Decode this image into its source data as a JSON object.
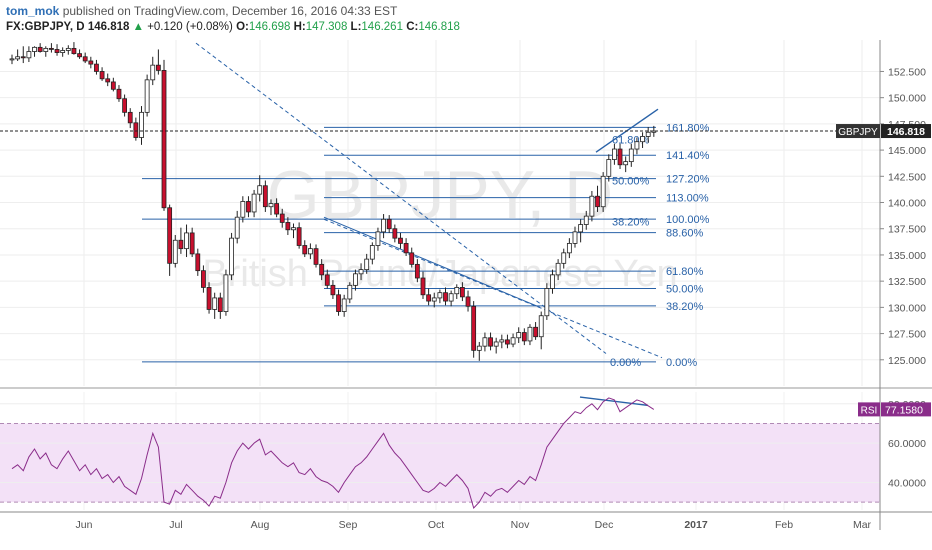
{
  "header": {
    "author": "tom_mok",
    "published_text": "published on TradingView.com, December 16, 2016 04:33 EST",
    "symbol": "FX:GBPJPY, D",
    "last": "146.818",
    "change_arrow": "▲",
    "change": "+0.120 (+0.08%)",
    "open_label": "O:",
    "open": "146.698",
    "high_label": "H:",
    "high": "147.308",
    "low_label": "L:",
    "low": "146.261",
    "close_label": "C:",
    "close": "146.818"
  },
  "watermark": {
    "symbol": "GBPJPY, D",
    "name": "British Pound/Japanese Yen"
  },
  "price_badge": {
    "label": "GBPJPY",
    "value": "146.818",
    "price": 146.818
  },
  "rsi_badge": {
    "label": "RSI",
    "value": "77.1580",
    "level": 77.158
  },
  "colors": {
    "up": "#ffffff",
    "down": "#c8102e",
    "wick": "#222222",
    "fib": "#2962a8",
    "rsi": "#8a2d8a",
    "rsi_band": "#f3e1f7"
  },
  "chart_data": {
    "type": "candlestick",
    "price_axis": {
      "ylim": [
        122.5,
        155.5
      ],
      "ticks": [
        "152.500",
        "150.000",
        "147.500",
        "145.000",
        "142.500",
        "140.000",
        "137.500",
        "135.000",
        "132.500",
        "130.000",
        "127.500",
        "125.000"
      ]
    },
    "rsi_axis": {
      "ylim": [
        26,
        86
      ],
      "ticks": [
        "80.0000",
        "60.0000",
        "40.0000"
      ],
      "overbought": 70,
      "oversold": 30
    },
    "time_axis": {
      "labels": [
        "Jun",
        "Jul",
        "Aug",
        "Sep",
        "Oct",
        "Nov",
        "Dec",
        "2017",
        "Feb",
        "Mar"
      ]
    },
    "candles": [
      [
        0,
        153.6,
        154.1,
        153.2,
        153.7
      ],
      [
        1,
        153.7,
        154.6,
        153.5,
        153.9
      ],
      [
        2,
        153.9,
        154.9,
        153.3,
        153.8
      ],
      [
        3,
        153.8,
        154.9,
        153.4,
        154.4
      ],
      [
        4,
        154.4,
        154.9,
        153.9,
        154.8
      ],
      [
        5,
        154.8,
        155.2,
        154.3,
        154.4
      ],
      [
        6,
        154.4,
        154.9,
        153.9,
        154.7
      ],
      [
        7,
        154.7,
        155.2,
        154.3,
        154.6
      ],
      [
        8,
        154.6,
        155.1,
        154.0,
        154.3
      ],
      [
        9,
        154.3,
        154.8,
        153.9,
        154.5
      ],
      [
        10,
        154.5,
        155.0,
        154.1,
        154.7
      ],
      [
        11,
        154.7,
        155.3,
        154.1,
        154.2
      ],
      [
        12,
        154.2,
        154.6,
        153.7,
        153.9
      ],
      [
        13,
        153.9,
        154.3,
        153.3,
        153.5
      ],
      [
        14,
        153.5,
        153.9,
        152.8,
        153.2
      ],
      [
        15,
        153.2,
        153.6,
        152.2,
        152.5
      ],
      [
        16,
        152.5,
        152.9,
        151.6,
        151.8
      ],
      [
        17,
        151.8,
        152.3,
        151.1,
        151.5
      ],
      [
        18,
        151.5,
        151.9,
        150.6,
        150.8
      ],
      [
        19,
        150.8,
        151.2,
        149.6,
        149.9
      ],
      [
        20,
        149.9,
        150.3,
        148.2,
        148.6
      ],
      [
        21,
        148.6,
        149.0,
        147.1,
        147.6
      ],
      [
        22,
        147.6,
        148.1,
        145.9,
        146.2
      ],
      [
        23,
        146.2,
        149.2,
        145.5,
        148.6
      ],
      [
        24,
        148.6,
        152.2,
        148.2,
        151.7
      ],
      [
        25,
        151.7,
        153.9,
        151.2,
        153.1
      ],
      [
        26,
        153.1,
        154.6,
        152.2,
        152.6
      ],
      [
        27,
        152.6,
        153.6,
        139.2,
        139.5
      ],
      [
        28,
        139.5,
        139.8,
        133.0,
        134.2
      ],
      [
        29,
        134.2,
        136.9,
        133.8,
        136.4
      ],
      [
        30,
        136.4,
        137.6,
        135.1,
        135.6
      ],
      [
        31,
        135.6,
        137.9,
        134.8,
        137.1
      ],
      [
        32,
        137.1,
        137.6,
        134.8,
        135.1
      ],
      [
        33,
        135.1,
        135.6,
        133.0,
        133.5
      ],
      [
        34,
        133.5,
        134.0,
        131.4,
        131.9
      ],
      [
        35,
        131.9,
        132.4,
        129.4,
        129.8
      ],
      [
        36,
        129.8,
        131.4,
        128.9,
        130.9
      ],
      [
        37,
        130.9,
        131.4,
        128.9,
        129.6
      ],
      [
        38,
        129.6,
        133.6,
        129.2,
        133.1
      ],
      [
        39,
        133.1,
        137.1,
        132.6,
        136.6
      ],
      [
        40,
        136.6,
        139.2,
        136.1,
        138.6
      ],
      [
        41,
        138.6,
        140.6,
        138.1,
        140.1
      ],
      [
        42,
        140.1,
        140.6,
        138.6,
        139.1
      ],
      [
        43,
        139.1,
        141.2,
        138.6,
        140.8
      ],
      [
        44,
        140.8,
        142.6,
        140.1,
        141.6
      ],
      [
        45,
        141.6,
        142.1,
        139.1,
        139.6
      ],
      [
        46,
        139.6,
        140.3,
        138.8,
        139.9
      ],
      [
        47,
        139.9,
        140.4,
        138.6,
        138.9
      ],
      [
        48,
        138.9,
        139.4,
        137.6,
        138.1
      ],
      [
        49,
        138.1,
        138.6,
        136.9,
        137.4
      ],
      [
        50,
        137.4,
        138.0,
        136.6,
        137.6
      ],
      [
        51,
        137.6,
        138.1,
        135.6,
        135.9
      ],
      [
        52,
        135.9,
        136.4,
        134.8,
        135.1
      ],
      [
        53,
        135.1,
        136.1,
        134.6,
        135.6
      ],
      [
        54,
        135.6,
        136.0,
        133.8,
        134.1
      ],
      [
        55,
        134.1,
        134.6,
        132.6,
        133.1
      ],
      [
        56,
        133.1,
        133.6,
        131.8,
        132.1
      ],
      [
        57,
        132.1,
        132.6,
        130.8,
        131.2
      ],
      [
        58,
        131.2,
        131.7,
        129.2,
        129.6
      ],
      [
        59,
        129.6,
        131.2,
        129.1,
        130.8
      ],
      [
        60,
        130.8,
        132.4,
        130.4,
        132.1
      ],
      [
        61,
        132.1,
        133.6,
        131.6,
        133.2
      ],
      [
        62,
        133.2,
        134.2,
        132.6,
        133.6
      ],
      [
        63,
        133.6,
        135.1,
        133.2,
        134.6
      ],
      [
        64,
        134.6,
        136.2,
        134.1,
        135.9
      ],
      [
        65,
        135.9,
        137.6,
        135.4,
        137.2
      ],
      [
        66,
        137.2,
        138.9,
        136.6,
        138.4
      ],
      [
        67,
        138.4,
        138.8,
        137.1,
        137.5
      ],
      [
        68,
        137.5,
        137.9,
        136.2,
        136.6
      ],
      [
        69,
        136.6,
        137.1,
        135.6,
        136.1
      ],
      [
        70,
        136.1,
        136.6,
        134.9,
        135.2
      ],
      [
        71,
        135.2,
        135.7,
        133.8,
        134.1
      ],
      [
        72,
        134.1,
        134.6,
        132.4,
        132.8
      ],
      [
        73,
        132.8,
        133.4,
        130.8,
        131.2
      ],
      [
        74,
        131.2,
        131.8,
        130.2,
        130.6
      ],
      [
        75,
        130.6,
        131.4,
        130.0,
        130.9
      ],
      [
        76,
        130.9,
        131.7,
        130.4,
        131.4
      ],
      [
        77,
        131.4,
        131.9,
        130.2,
        130.6
      ],
      [
        78,
        130.6,
        131.6,
        130.1,
        131.3
      ],
      [
        79,
        131.3,
        132.2,
        130.8,
        131.9
      ],
      [
        80,
        131.9,
        132.4,
        130.6,
        131.0
      ],
      [
        81,
        131.0,
        131.6,
        129.6,
        130.1
      ],
      [
        82,
        130.1,
        130.6,
        125.2,
        125.9
      ],
      [
        83,
        125.9,
        126.7,
        124.9,
        126.3
      ],
      [
        84,
        126.3,
        127.6,
        125.8,
        127.1
      ],
      [
        85,
        127.1,
        127.6,
        125.9,
        126.3
      ],
      [
        86,
        126.3,
        127.1,
        125.6,
        126.7
      ],
      [
        87,
        126.7,
        127.4,
        126.1,
        126.9
      ],
      [
        88,
        126.9,
        127.4,
        126.1,
        126.5
      ],
      [
        89,
        126.5,
        127.5,
        126.2,
        127.1
      ],
      [
        90,
        127.1,
        128.1,
        126.6,
        127.6
      ],
      [
        91,
        127.6,
        128.0,
        126.4,
        126.8
      ],
      [
        92,
        126.8,
        128.4,
        126.4,
        128.1
      ],
      [
        93,
        128.1,
        128.6,
        126.9,
        127.2
      ],
      [
        94,
        127.2,
        129.6,
        126.0,
        129.2
      ],
      [
        95,
        129.2,
        132.3,
        128.8,
        131.8
      ],
      [
        96,
        131.8,
        133.6,
        131.3,
        133.1
      ],
      [
        97,
        133.1,
        134.6,
        132.6,
        134.2
      ],
      [
        98,
        134.2,
        135.6,
        133.7,
        135.2
      ],
      [
        99,
        135.2,
        136.6,
        134.7,
        136.1
      ],
      [
        100,
        136.1,
        137.7,
        135.7,
        137.2
      ],
      [
        101,
        137.2,
        138.4,
        136.2,
        137.9
      ],
      [
        102,
        137.9,
        139.2,
        137.4,
        138.7
      ],
      [
        103,
        138.7,
        141.1,
        138.2,
        140.6
      ],
      [
        104,
        140.6,
        141.6,
        139.1,
        139.6
      ],
      [
        105,
        139.6,
        142.9,
        139.1,
        142.5
      ],
      [
        106,
        142.5,
        144.6,
        142.0,
        144.1
      ],
      [
        107,
        144.1,
        145.6,
        143.6,
        145.1
      ],
      [
        108,
        145.1,
        145.6,
        143.2,
        143.6
      ],
      [
        109,
        143.6,
        144.4,
        142.9,
        143.9
      ],
      [
        110,
        143.9,
        145.6,
        143.4,
        145.1
      ],
      [
        111,
        145.1,
        146.2,
        144.6,
        145.8
      ],
      [
        112,
        145.8,
        146.7,
        145.2,
        146.3
      ],
      [
        113,
        146.3,
        147.2,
        145.7,
        146.7
      ],
      [
        114,
        146.698,
        147.308,
        146.261,
        146.818
      ]
    ],
    "rsi": [
      [
        0,
        47
      ],
      [
        1,
        49
      ],
      [
        2,
        46
      ],
      [
        3,
        53
      ],
      [
        4,
        57
      ],
      [
        5,
        52
      ],
      [
        6,
        55
      ],
      [
        7,
        49
      ],
      [
        8,
        47
      ],
      [
        9,
        52
      ],
      [
        10,
        56
      ],
      [
        11,
        51
      ],
      [
        12,
        46
      ],
      [
        13,
        49
      ],
      [
        14,
        44
      ],
      [
        15,
        47
      ],
      [
        16,
        42
      ],
      [
        17,
        44
      ],
      [
        18,
        40
      ],
      [
        19,
        43
      ],
      [
        20,
        38
      ],
      [
        21,
        36
      ],
      [
        22,
        34
      ],
      [
        23,
        42
      ],
      [
        24,
        54
      ],
      [
        25,
        65
      ],
      [
        26,
        58
      ],
      [
        27,
        30
      ],
      [
        28,
        29
      ],
      [
        29,
        36
      ],
      [
        30,
        34
      ],
      [
        31,
        39
      ],
      [
        32,
        36
      ],
      [
        33,
        33
      ],
      [
        34,
        31
      ],
      [
        35,
        28
      ],
      [
        36,
        33
      ],
      [
        37,
        32
      ],
      [
        38,
        40
      ],
      [
        39,
        50
      ],
      [
        40,
        56
      ],
      [
        41,
        60
      ],
      [
        42,
        57
      ],
      [
        43,
        60
      ],
      [
        44,
        62
      ],
      [
        45,
        54
      ],
      [
        46,
        56
      ],
      [
        47,
        53
      ],
      [
        48,
        50
      ],
      [
        49,
        48
      ],
      [
        50,
        50
      ],
      [
        51,
        45
      ],
      [
        52,
        44
      ],
      [
        53,
        47
      ],
      [
        54,
        43
      ],
      [
        55,
        41
      ],
      [
        56,
        40
      ],
      [
        57,
        38
      ],
      [
        58,
        35
      ],
      [
        59,
        40
      ],
      [
        60,
        44
      ],
      [
        61,
        48
      ],
      [
        62,
        50
      ],
      [
        63,
        53
      ],
      [
        64,
        57
      ],
      [
        65,
        61
      ],
      [
        66,
        65
      ],
      [
        67,
        59
      ],
      [
        68,
        55
      ],
      [
        69,
        52
      ],
      [
        70,
        48
      ],
      [
        71,
        44
      ],
      [
        72,
        40
      ],
      [
        73,
        36
      ],
      [
        74,
        35
      ],
      [
        75,
        37
      ],
      [
        76,
        40
      ],
      [
        77,
        38
      ],
      [
        78,
        41
      ],
      [
        79,
        44
      ],
      [
        80,
        41
      ],
      [
        81,
        37
      ],
      [
        82,
        27
      ],
      [
        83,
        30
      ],
      [
        84,
        35
      ],
      [
        85,
        33
      ],
      [
        86,
        36
      ],
      [
        87,
        37
      ],
      [
        88,
        35
      ],
      [
        89,
        38
      ],
      [
        90,
        41
      ],
      [
        91,
        39
      ],
      [
        92,
        43
      ],
      [
        93,
        41
      ],
      [
        94,
        49
      ],
      [
        95,
        58
      ],
      [
        96,
        62
      ],
      [
        97,
        66
      ],
      [
        98,
        70
      ],
      [
        99,
        73
      ],
      [
        100,
        76
      ],
      [
        101,
        75
      ],
      [
        102,
        78
      ],
      [
        103,
        80
      ],
      [
        104,
        77
      ],
      [
        105,
        81
      ],
      [
        106,
        83
      ],
      [
        107,
        82
      ],
      [
        108,
        76
      ],
      [
        109,
        78
      ],
      [
        110,
        80
      ],
      [
        111,
        82
      ],
      [
        112,
        81
      ],
      [
        113,
        79
      ],
      [
        114,
        77.158
      ]
    ],
    "fib_levels": [
      {
        "label": "161.80%",
        "price": 147.17
      },
      {
        "label": "141.40%",
        "price": 144.51
      },
      {
        "label": "127.20%",
        "price": 142.28
      },
      {
        "label": "113.00%",
        "price": 140.47
      },
      {
        "label": "100.00%",
        "price": 138.41
      },
      {
        "label": "88.60%",
        "price": 137.13
      },
      {
        "label": "61.80%",
        "price": 133.46
      },
      {
        "label": "50.00%",
        "price": 131.8
      },
      {
        "label": "38.20%",
        "price": 130.14
      },
      {
        "label": "0.00%",
        "price": 124.8
      }
    ],
    "fib_inner_levels": [
      {
        "label": "61.80%",
        "price": 146.0
      },
      {
        "label": "50.00%",
        "price": 142.1
      },
      {
        "label": "38.20%",
        "price": 138.2
      },
      {
        "label": "0.00%",
        "price": 124.8
      }
    ]
  }
}
